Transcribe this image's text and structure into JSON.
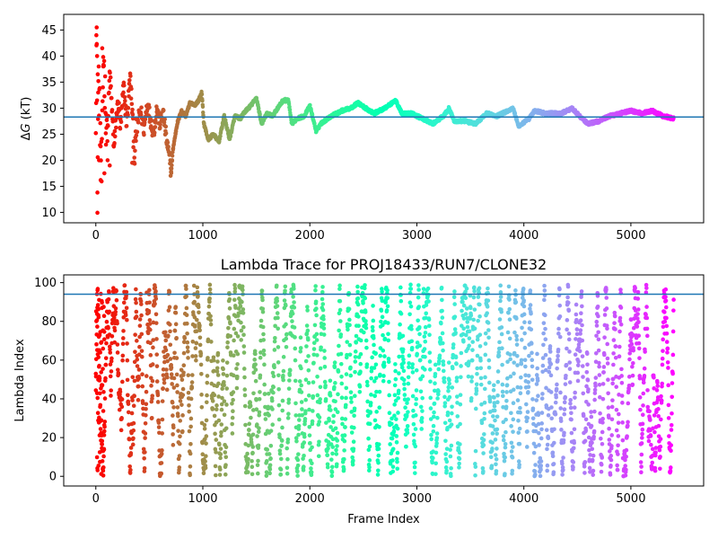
{
  "chart_data": [
    {
      "type": "scatter",
      "title": "",
      "xlabel": "",
      "ylabel_main": "ΔG",
      "ylabel_unit": " (kT)",
      "xlim": [
        -300,
        5680
      ],
      "ylim": [
        8,
        48
      ],
      "xticks": [
        0,
        1000,
        2000,
        3000,
        4000,
        5000
      ],
      "yticks": [
        10,
        15,
        20,
        25,
        30,
        35,
        40,
        45
      ],
      "reference_line": 28.3,
      "colormap": "rainbow",
      "x_range": [
        0,
        5400
      ],
      "series": [
        {
          "anchors": [
            [
              0,
              30
            ],
            [
              8,
              45.5
            ],
            [
              15,
              13.8
            ],
            [
              25,
              36.5
            ],
            [
              40,
              26.5
            ],
            [
              55,
              16.2
            ],
            [
              70,
              41.5
            ],
            [
              90,
              31
            ],
            [
              110,
              25
            ],
            [
              130,
              37
            ],
            [
              150,
              30
            ],
            [
              170,
              22
            ],
            [
              190,
              28
            ],
            [
              210,
              31
            ],
            [
              230,
              26
            ],
            [
              260,
              34
            ],
            [
              290,
              27
            ],
            [
              320,
              36
            ],
            [
              340,
              30
            ],
            [
              360,
              20
            ],
            [
              380,
              26
            ],
            [
              400,
              28
            ],
            [
              420,
              29.5
            ],
            [
              450,
              26
            ],
            [
              480,
              31
            ],
            [
              510,
              28
            ],
            [
              540,
              25
            ],
            [
              570,
              30
            ],
            [
              600,
              27
            ],
            [
              630,
              29
            ],
            [
              660,
              24
            ],
            [
              690,
              20
            ],
            [
              705,
              17.5
            ],
            [
              720,
              22
            ],
            [
              760,
              27
            ],
            [
              800,
              29.5
            ],
            [
              840,
              28.5
            ],
            [
              880,
              31
            ],
            [
              920,
              30.5
            ],
            [
              960,
              31.5
            ],
            [
              990,
              33
            ],
            [
              1010,
              27
            ],
            [
              1050,
              24
            ],
            [
              1100,
              25
            ],
            [
              1150,
              23.5
            ],
            [
              1200,
              28.5
            ],
            [
              1250,
              24
            ],
            [
              1300,
              28.5
            ],
            [
              1350,
              28
            ],
            [
              1400,
              29.5
            ],
            [
              1450,
              30.5
            ],
            [
              1500,
              32
            ],
            [
              1550,
              27
            ],
            [
              1600,
              29
            ],
            [
              1650,
              28.5
            ],
            [
              1700,
              30
            ],
            [
              1750,
              31.5
            ],
            [
              1800,
              31.5
            ],
            [
              1830,
              27
            ],
            [
              1880,
              28
            ],
            [
              1950,
              28.5
            ],
            [
              2000,
              30.5
            ],
            [
              2030,
              28
            ],
            [
              2060,
              25.5
            ],
            [
              2100,
              27
            ],
            [
              2200,
              28.5
            ],
            [
              2300,
              29.5
            ],
            [
              2380,
              30
            ],
            [
              2450,
              31
            ],
            [
              2520,
              30
            ],
            [
              2600,
              29
            ],
            [
              2700,
              30
            ],
            [
              2800,
              31.5
            ],
            [
              2860,
              29
            ],
            [
              2950,
              29
            ],
            [
              3050,
              28
            ],
            [
              3150,
              27
            ],
            [
              3250,
              28.5
            ],
            [
              3300,
              30
            ],
            [
              3350,
              27.5
            ],
            [
              3450,
              27.5
            ],
            [
              3550,
              27
            ],
            [
              3650,
              29
            ],
            [
              3750,
              28.5
            ],
            [
              3850,
              29.5
            ],
            [
              3900,
              30
            ],
            [
              3950,
              26.5
            ],
            [
              4050,
              28
            ],
            [
              4100,
              29.5
            ],
            [
              4200,
              29
            ],
            [
              4300,
              29
            ],
            [
              4350,
              29
            ],
            [
              4450,
              30
            ],
            [
              4520,
              28.5
            ],
            [
              4600,
              27
            ],
            [
              4700,
              27.5
            ],
            [
              4800,
              28.5
            ],
            [
              4900,
              29
            ],
            [
              5000,
              29.5
            ],
            [
              5100,
              29
            ],
            [
              5200,
              29.5
            ],
            [
              5300,
              28.5
            ],
            [
              5400,
              28
            ]
          ]
        }
      ]
    },
    {
      "type": "scatter",
      "title": "Lambda Trace for PROJ18433/RUN7/CLONE32",
      "xlabel": "Frame Index",
      "ylabel": "Lambda Index",
      "xlim": [
        -300,
        5680
      ],
      "ylim": [
        -5,
        104
      ],
      "xticks": [
        0,
        1000,
        2000,
        3000,
        4000,
        5000
      ],
      "yticks": [
        0,
        20,
        40,
        60,
        80,
        100
      ],
      "reference_line": 94,
      "colormap": "rainbow",
      "x_range": [
        0,
        5400
      ],
      "lambda_range": [
        0,
        99
      ],
      "total_frames": 5400
    }
  ]
}
